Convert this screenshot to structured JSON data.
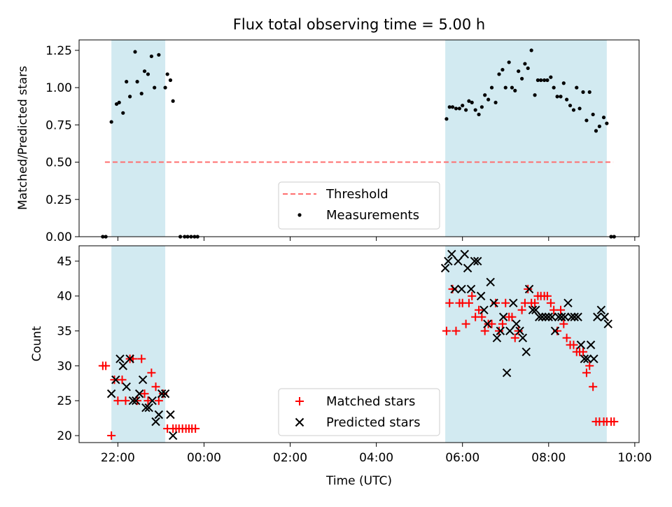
{
  "title": "Flux total observing time = 5.00 h",
  "colors": {
    "band": "#add8e6",
    "threshold": "#ff6f6f",
    "matched": "#ff0000",
    "predicted": "#000000",
    "measurement": "#000000"
  },
  "chart_data": [
    {
      "type": "scatter",
      "ylabel": "Matched/Predicted stars",
      "xlabel": "",
      "xlim": [
        -2.9,
        10.1
      ],
      "ylim": [
        0,
        1.32
      ],
      "yticks": [
        0.0,
        0.25,
        0.5,
        0.75,
        1.0,
        1.25
      ],
      "ytick_labels": [
        "0.00",
        "0.25",
        "0.50",
        "0.75",
        "1.00",
        "1.25"
      ],
      "shaded_spans": [
        [
          -2.15,
          -0.9
        ],
        [
          5.6,
          9.35
        ]
      ],
      "legend": {
        "position": "lower-center",
        "entries": [
          "Threshold",
          "Measurements"
        ]
      },
      "threshold": {
        "name": "Threshold",
        "y": 0.5,
        "x": [
          -2.3,
          9.5
        ]
      },
      "series": [
        {
          "name": "Measurements",
          "style": "dot",
          "x": [
            -2.35,
            -2.28,
            -2.15,
            -2.03,
            -1.97,
            -1.88,
            -1.8,
            -1.72,
            -1.6,
            -1.55,
            -1.45,
            -1.38,
            -1.3,
            -1.22,
            -1.15,
            -1.05,
            -0.9,
            -0.78,
            -0.72,
            -0.85,
            -0.55,
            -0.45,
            -0.38,
            -0.3,
            -0.22,
            -0.15,
            5.63,
            5.7,
            5.77,
            5.85,
            5.93,
            6.0,
            6.08,
            6.15,
            6.22,
            6.3,
            6.38,
            6.45,
            6.52,
            6.6,
            6.68,
            6.77,
            6.85,
            6.93,
            7.0,
            7.08,
            7.15,
            7.22,
            7.3,
            7.38,
            7.45,
            7.52,
            7.6,
            7.68,
            7.75,
            7.82,
            7.9,
            7.97,
            8.05,
            8.12,
            8.2,
            8.28,
            8.35,
            8.42,
            8.5,
            8.58,
            8.65,
            8.72,
            8.8,
            8.88,
            8.95,
            9.03,
            9.1,
            9.18,
            9.28,
            9.35,
            9.45,
            9.52
          ],
          "y": [
            0.0,
            0.0,
            0.77,
            0.89,
            0.9,
            0.83,
            1.04,
            0.94,
            1.24,
            1.04,
            0.96,
            1.11,
            1.09,
            1.21,
            1.0,
            1.22,
            1.0,
            1.05,
            0.91,
            1.09,
            0.0,
            0.0,
            0.0,
            0.0,
            0.0,
            0.0,
            0.79,
            0.87,
            0.87,
            0.86,
            0.86,
            0.88,
            0.85,
            0.91,
            0.9,
            0.85,
            0.82,
            0.87,
            0.95,
            0.92,
            1.0,
            0.9,
            1.09,
            1.12,
            1.0,
            1.17,
            1.0,
            0.98,
            1.11,
            1.06,
            1.16,
            1.13,
            1.25,
            0.95,
            1.05,
            1.05,
            1.05,
            1.05,
            1.07,
            1.0,
            0.94,
            0.94,
            1.03,
            0.92,
            0.88,
            0.85,
            1.0,
            0.86,
            0.97,
            0.78,
            0.97,
            0.82,
            0.71,
            0.74,
            0.8,
            0.76,
            0.0,
            0.0
          ]
        }
      ]
    },
    {
      "type": "scatter",
      "ylabel": "Count",
      "xlabel": "Time (UTC)",
      "xlim": [
        -2.9,
        10.1
      ],
      "ylim": [
        19.0,
        47.2
      ],
      "yticks": [
        20,
        25,
        30,
        35,
        40,
        45
      ],
      "ytick_labels": [
        "20",
        "25",
        "30",
        "35",
        "40",
        "45"
      ],
      "xticks": [
        -2,
        0,
        2,
        4,
        6,
        8,
        10
      ],
      "xtick_labels": [
        "22:00",
        "00:00",
        "02:00",
        "04:00",
        "06:00",
        "08:00",
        "10:00"
      ],
      "shaded_spans": [
        [
          -2.15,
          -0.9
        ],
        [
          5.6,
          9.35
        ]
      ],
      "legend": {
        "position": "lower-center",
        "entries": [
          "Matched stars",
          "Predicted stars"
        ]
      },
      "series": [
        {
          "name": "Matched stars",
          "style": "plus",
          "x": [
            -2.35,
            -2.28,
            -2.15,
            -2.08,
            -2.0,
            -1.9,
            -1.82,
            -1.72,
            -1.65,
            -1.55,
            -1.45,
            -1.38,
            -1.3,
            -1.22,
            -1.12,
            -1.05,
            -0.95,
            -0.85,
            -0.72,
            -0.65,
            -0.58,
            -0.5,
            -0.42,
            -0.35,
            -0.28,
            -0.2,
            5.63,
            5.7,
            5.77,
            5.85,
            5.93,
            6.0,
            6.08,
            6.15,
            6.22,
            6.3,
            6.38,
            6.45,
            6.52,
            6.6,
            6.68,
            6.77,
            6.85,
            6.93,
            7.0,
            7.08,
            7.15,
            7.22,
            7.3,
            7.38,
            7.45,
            7.52,
            7.6,
            7.68,
            7.75,
            7.82,
            7.9,
            7.97,
            8.05,
            8.12,
            8.2,
            8.28,
            8.35,
            8.42,
            8.5,
            8.58,
            8.65,
            8.72,
            8.8,
            8.88,
            8.95,
            9.03,
            9.1,
            9.18,
            9.28,
            9.35,
            9.45,
            9.52
          ],
          "y": [
            30,
            30,
            20,
            28,
            25,
            28,
            25,
            31,
            31,
            25,
            31,
            26,
            25,
            29,
            27,
            25,
            26,
            21,
            21,
            21,
            21,
            21,
            21,
            21,
            21,
            21,
            35,
            39,
            41,
            35,
            39,
            39,
            36,
            39,
            40,
            37,
            38,
            37,
            35,
            36,
            36,
            39,
            35,
            36,
            39,
            37,
            37,
            34,
            35,
            38,
            39,
            41,
            39,
            39,
            40,
            40,
            40,
            40,
            39,
            38,
            35,
            38,
            36,
            34,
            33,
            33,
            32,
            32,
            32,
            29,
            30,
            27,
            22,
            22,
            22,
            22,
            22,
            22
          ]
        },
        {
          "name": "Predicted stars",
          "style": "x",
          "x": [
            -2.15,
            -2.05,
            -1.95,
            -1.88,
            -1.8,
            -1.72,
            -1.65,
            -1.58,
            -1.5,
            -1.42,
            -1.35,
            -1.28,
            -1.2,
            -1.12,
            -1.05,
            -0.98,
            -0.9,
            -0.78,
            -0.72,
            5.6,
            5.67,
            5.75,
            5.82,
            5.9,
            5.98,
            6.05,
            6.12,
            6.2,
            6.28,
            6.35,
            6.43,
            6.5,
            6.58,
            6.65,
            6.73,
            6.8,
            6.88,
            6.95,
            7.03,
            7.1,
            7.18,
            7.25,
            7.33,
            7.4,
            7.48,
            7.55,
            7.63,
            7.7,
            7.78,
            7.85,
            7.93,
            8.0,
            8.08,
            8.15,
            8.23,
            8.3,
            8.38,
            8.45,
            8.53,
            8.6,
            8.68,
            8.75,
            8.83,
            8.9,
            8.98,
            9.05,
            9.13,
            9.22,
            9.3,
            9.38
          ],
          "y": [
            26,
            28,
            31,
            30,
            27,
            31,
            25,
            25,
            26,
            28,
            24,
            24,
            25,
            22,
            23,
            26,
            26,
            23,
            20,
            44,
            45,
            46,
            41,
            45,
            41,
            46,
            44,
            41,
            45,
            45,
            40,
            38,
            36,
            42,
            39,
            34,
            35,
            37,
            29,
            35,
            39,
            36,
            35,
            34,
            32,
            41,
            38,
            38,
            37,
            37,
            37,
            37,
            37,
            35,
            37,
            37,
            37,
            39,
            37,
            37,
            37,
            33,
            31,
            31,
            33,
            31,
            37,
            38,
            37,
            36
          ]
        }
      ]
    }
  ]
}
